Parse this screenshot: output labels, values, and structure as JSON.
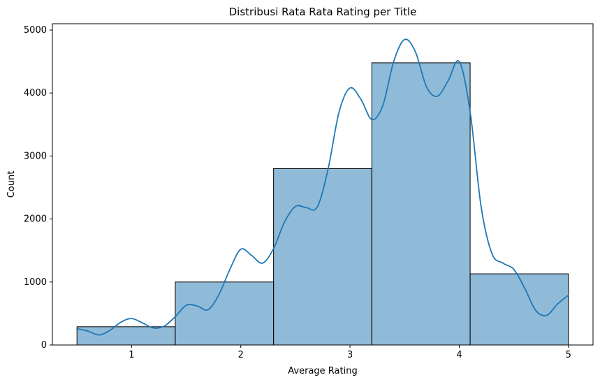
{
  "chart_data": {
    "type": "bar",
    "title": "Distribusi Rata Rata Rating per Title",
    "xlabel": "Average Rating",
    "ylabel": "Count",
    "bins": [
      {
        "start": 0.5,
        "end": 1.4,
        "count": 290
      },
      {
        "start": 1.4,
        "end": 2.3,
        "count": 1000
      },
      {
        "start": 2.3,
        "end": 3.2,
        "count": 2800
      },
      {
        "start": 3.2,
        "end": 4.1,
        "count": 4480
      },
      {
        "start": 4.1,
        "end": 5.0,
        "count": 1130
      }
    ],
    "xlim": [
      0.275,
      5.225
    ],
    "ylim": [
      0,
      5100
    ],
    "xticks": [
      1,
      2,
      3,
      4,
      5
    ],
    "yticks": [
      0,
      1000,
      2000,
      3000,
      4000,
      5000
    ],
    "grid": false,
    "colors": {
      "bar_fill": "#1f77b4",
      "bar_fill_opacity": 0.5,
      "bar_edge": "#000000",
      "kde_line": "#1f77b4"
    },
    "kde": {
      "x": [
        0.5,
        0.6,
        0.7,
        0.8,
        0.9,
        1.0,
        1.1,
        1.2,
        1.3,
        1.4,
        1.5,
        1.6,
        1.7,
        1.8,
        1.9,
        2.0,
        2.1,
        2.2,
        2.3,
        2.4,
        2.5,
        2.6,
        2.7,
        2.8,
        2.9,
        3.0,
        3.1,
        3.2,
        3.3,
        3.4,
        3.5,
        3.6,
        3.7,
        3.8,
        3.9,
        4.0,
        4.1,
        4.2,
        4.3,
        4.4,
        4.5,
        4.6,
        4.7,
        4.8,
        4.9,
        5.0
      ],
      "y": [
        260,
        220,
        160,
        230,
        360,
        420,
        350,
        270,
        300,
        450,
        630,
        620,
        560,
        800,
        1200,
        1520,
        1420,
        1300,
        1530,
        1950,
        2200,
        2180,
        2190,
        2800,
        3700,
        4080,
        3900,
        3580,
        3800,
        4500,
        4850,
        4650,
        4100,
        3950,
        4200,
        4500,
        3700,
        2200,
        1450,
        1300,
        1200,
        900,
        550,
        470,
        650,
        790
      ]
    }
  }
}
